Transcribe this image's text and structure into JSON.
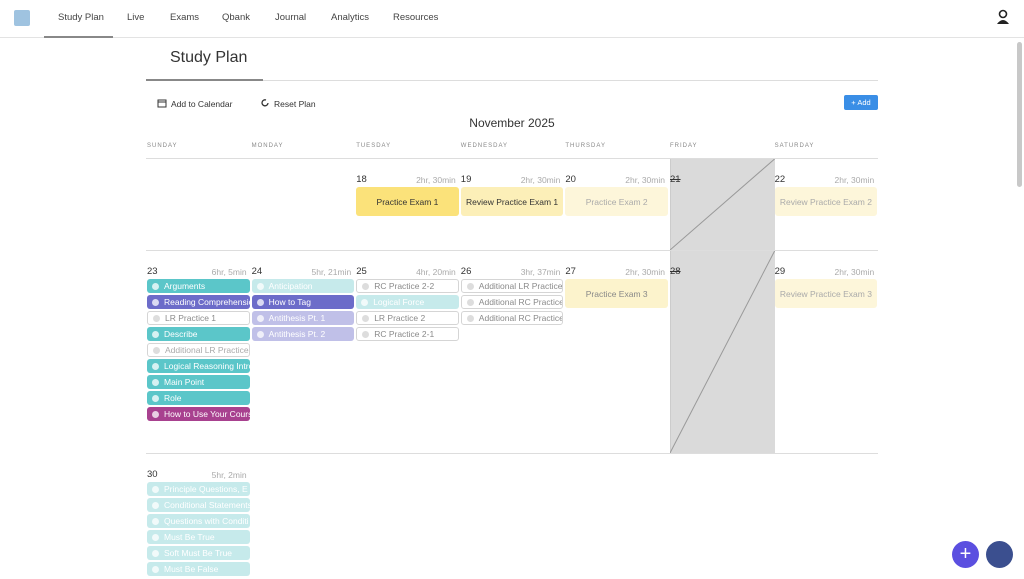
{
  "nav": {
    "items": [
      "Study Plan",
      "Live",
      "Exams",
      "Qbank",
      "Journal",
      "Analytics",
      "Resources"
    ]
  },
  "page_title": "Study Plan",
  "actions": {
    "add_to_calendar": "Add to Calendar",
    "reset_plan": "Reset Plan",
    "add": "+ Add"
  },
  "calendar": {
    "month": "November 2025",
    "weekdays": [
      "SUNDAY",
      "MONDAY",
      "TUESDAY",
      "WEDNESDAY",
      "THURSDAY",
      "FRIDAY",
      "SATURDAY"
    ],
    "weeks": [
      [
        null,
        null,
        {
          "date": "18",
          "duration": "2hr, 30min",
          "tasks": [
            {
              "label": "Practice Exam 1",
              "color": "#fbe27a",
              "text_color": "#333333"
            }
          ]
        },
        {
          "date": "19",
          "duration": "2hr, 30min",
          "tasks": [
            {
              "label": "Review Practice Exam 1",
              "color": "#fcefb8",
              "text_color": "#333333"
            }
          ]
        },
        {
          "date": "20",
          "duration": "2hr, 30min",
          "tasks": [
            {
              "label": "Practice Exam 2",
              "color": "#fdf6da",
              "text_color": "#aaaaaa"
            }
          ]
        },
        {
          "date": "21",
          "duration": null,
          "tasks": []
        },
        {
          "date": "22",
          "duration": "2hr, 30min",
          "tasks": [
            {
              "label": "Review Practice Exam 2",
              "color": "#fdf6da",
              "text_color": "#aaaaaa"
            }
          ]
        }
      ],
      [
        {
          "date": "23",
          "duration": "6hr, 5min",
          "tasks": [
            {
              "label": "Arguments",
              "color": "#5bc6c9",
              "text_color": "#ffffff"
            },
            {
              "label": "Reading Comprehensio",
              "color": "#6c6cc9",
              "text_color": "#ffffff"
            },
            {
              "label": "LR Practice 1",
              "color": "#ffffff",
              "text_color": "#8a8a8a"
            },
            {
              "label": "Describe",
              "color": "#5bc6c9",
              "text_color": "#ffffff"
            },
            {
              "label": "Additional LR Practice",
              "color": "#ffffff",
              "text_color": "#aaaaaa"
            },
            {
              "label": "Logical Reasoning Intro",
              "color": "#5bc6c9",
              "text_color": "#ffffff"
            },
            {
              "label": "Main Point",
              "color": "#5bc6c9",
              "text_color": "#ffffff"
            },
            {
              "label": "Role",
              "color": "#5bc6c9",
              "text_color": "#ffffff"
            },
            {
              "label": "How to Use Your Cours",
              "color": "#a8418f",
              "text_color": "#ffffff"
            }
          ]
        },
        {
          "date": "24",
          "duration": "5hr, 21min",
          "tasks": [
            {
              "label": "Anticipation",
              "color": "#c6eaeb",
              "text_color": "#ffffff"
            },
            {
              "label": "How to Tag",
              "color": "#6c6cc9",
              "text_color": "#ffffff"
            },
            {
              "label": "Antithesis Pt. 1",
              "color": "#c0c0e8",
              "text_color": "#ffffff"
            },
            {
              "label": "Antithesis Pt. 2",
              "color": "#c0c0e8",
              "text_color": "#ffffff"
            }
          ]
        },
        {
          "date": "25",
          "duration": "4hr, 20min",
          "tasks": [
            {
              "label": "RC Practice 2-2",
              "color": "#ffffff",
              "text_color": "#8a8a8a"
            },
            {
              "label": "Logical Force",
              "color": "#c6eaeb",
              "text_color": "#ffffff"
            },
            {
              "label": "LR Practice 2",
              "color": "#ffffff",
              "text_color": "#8a8a8a"
            },
            {
              "label": "RC Practice 2-1",
              "color": "#ffffff",
              "text_color": "#8a8a8a"
            }
          ]
        },
        {
          "date": "26",
          "duration": "3hr, 37min",
          "tasks": [
            {
              "label": "Additional LR Practice",
              "color": "#ffffff",
              "text_color": "#8a8a8a"
            },
            {
              "label": "Additional RC Practice",
              "color": "#ffffff",
              "text_color": "#8a8a8a"
            },
            {
              "label": "Additional RC Practice",
              "color": "#ffffff",
              "text_color": "#8a8a8a"
            }
          ]
        },
        {
          "date": "27",
          "duration": "2hr, 30min",
          "tasks": [
            {
              "label": "Practice Exam 3",
              "color": "#fcf3cc",
              "text_color": "#888888"
            }
          ]
        },
        {
          "date": "28",
          "duration": null,
          "tasks": []
        },
        {
          "date": "29",
          "duration": "2hr, 30min",
          "tasks": [
            {
              "label": "Review Practice Exam 3",
              "color": "#fdf6da",
              "text_color": "#aaaaaa"
            }
          ]
        }
      ],
      [
        {
          "date": "30",
          "duration": "5hr, 2min",
          "tasks": [
            {
              "label": "Principle Questions, E",
              "color": "#c6eaeb",
              "text_color": "#ffffff"
            },
            {
              "label": "Conditional Statements",
              "color": "#c6eaeb",
              "text_color": "#ffffff"
            },
            {
              "label": "Questions with Conditi",
              "color": "#c6eaeb",
              "text_color": "#ffffff"
            },
            {
              "label": "Must Be True",
              "color": "#c6eaeb",
              "text_color": "#ffffff"
            },
            {
              "label": "Soft Must Be True",
              "color": "#c6eaeb",
              "text_color": "#ffffff"
            },
            {
              "label": "Must Be False",
              "color": "#c6eaeb",
              "text_color": "#ffffff"
            }
          ]
        },
        null,
        null,
        null,
        null,
        null,
        null
      ]
    ]
  }
}
